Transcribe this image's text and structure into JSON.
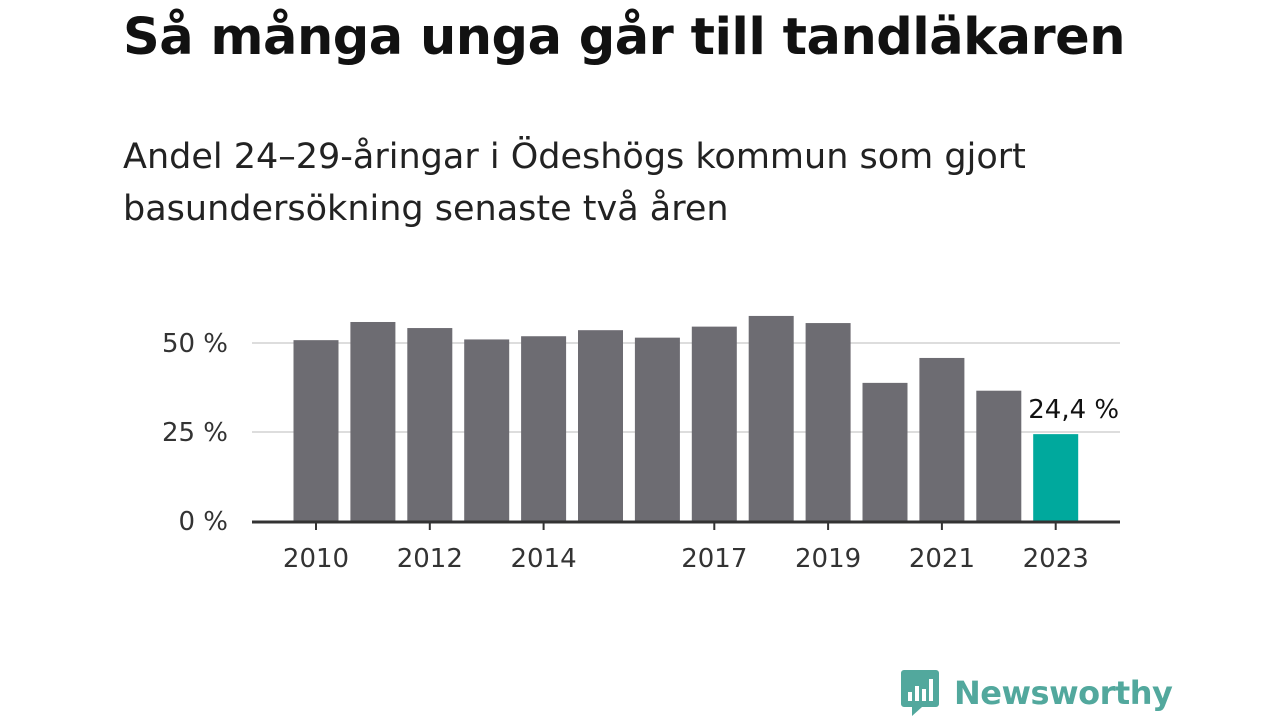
{
  "title": "Så många unga går till tandläkaren",
  "subtitle": "Andel 24–29-åringar i Ödeshögs kommun som gjort basundersökning senaste två åren",
  "brand": "Newsworthy",
  "colors": {
    "bar": "#6d6c72",
    "highlight": "#00a99d",
    "grid": "#dddddd",
    "axis": "#333333",
    "brand": "#52a89d"
  },
  "icons": {
    "brand": "bar-chart-speech-bubble-icon"
  },
  "chart_data": {
    "type": "bar",
    "x": [
      2010,
      2011,
      2012,
      2013,
      2014,
      2015,
      2016,
      2017,
      2018,
      2019,
      2020,
      2021,
      2022,
      2023
    ],
    "values": [
      50.8,
      55.9,
      54.2,
      51.0,
      51.9,
      53.6,
      51.5,
      54.6,
      57.6,
      55.6,
      38.8,
      45.8,
      36.6,
      24.4
    ],
    "xticks": [
      "2010",
      "2012",
      "2014",
      "2017",
      "2019",
      "2021",
      "2023"
    ],
    "yticks": [
      {
        "value": 0,
        "label": "0 %"
      },
      {
        "value": 25,
        "label": "25 %"
      },
      {
        "value": 50,
        "label": "50 %"
      }
    ],
    "ylim": [
      0,
      60
    ],
    "highlight": {
      "x": 2023,
      "label": "24,4 %"
    },
    "grid": true
  }
}
